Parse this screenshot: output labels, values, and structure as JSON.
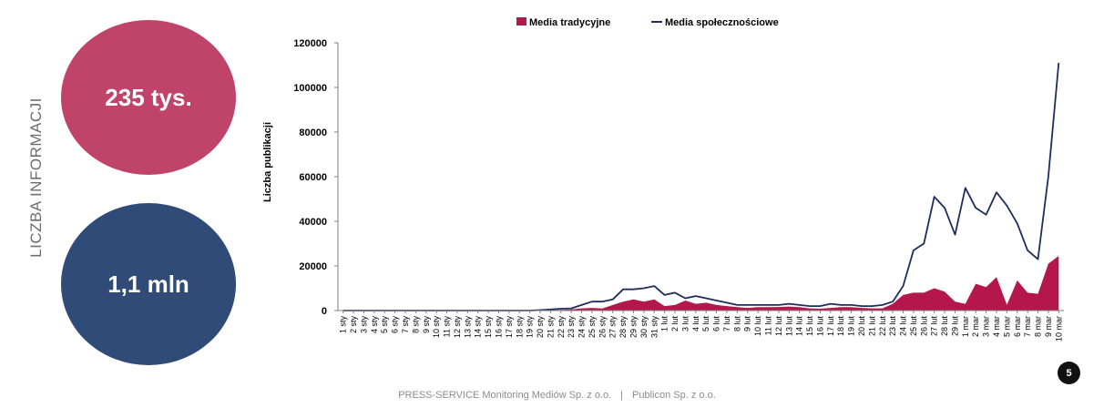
{
  "side_title": "LICZBA INFORMACJI",
  "stats": {
    "traditional": "235 tys.",
    "social": "1,1 mln"
  },
  "footer": {
    "left": "PRESS-SERVICE Monitoring Mediów Sp. z o.o.",
    "separator": "|",
    "right": "Publicon Sp. z o.o."
  },
  "page_number": "5",
  "colors": {
    "traditional": "#b5174c",
    "social": "#1f2d5c",
    "circle_top": "#c0436a",
    "circle_bottom": "#304b78"
  },
  "chart_data": {
    "type": "area+line",
    "title": "",
    "xlabel": "",
    "ylabel": "Liczba publikacji",
    "ylim": [
      0,
      120000
    ],
    "yticks": [
      "0",
      "20000",
      "40000",
      "60000",
      "80000",
      "100000",
      "120000"
    ],
    "legend_position": "top-center",
    "categories": [
      "1 sty",
      "2 sty",
      "3 sty",
      "4 sty",
      "5 sty",
      "6 sty",
      "7 sty",
      "8 sty",
      "9 sty",
      "10 sty",
      "11 sty",
      "12 sty",
      "13 sty",
      "14 sty",
      "15 sty",
      "16 sty",
      "17 sty",
      "18 sty",
      "19 sty",
      "20 sty",
      "21 sty",
      "22 sty",
      "23 sty",
      "24 sty",
      "25 sty",
      "26 sty",
      "27 sty",
      "28 sty",
      "29 sty",
      "30 sty",
      "31 sty",
      "1 lut",
      "2 lut",
      "3 lut",
      "4 lut",
      "5 lut",
      "6 lut",
      "7 lut",
      "8 lut",
      "9 lut",
      "10 lut",
      "11 lut",
      "12 lut",
      "13 lut",
      "14 lut",
      "15 lut",
      "16 lut",
      "17 lut",
      "18 lut",
      "19 lut",
      "20 lut",
      "21 lut",
      "22 lut",
      "23 lut",
      "24 lut",
      "25 lut",
      "26 lut",
      "27 lut",
      "28 lut",
      "29 lut",
      "1 mar",
      "2 mar",
      "3 mar",
      "4 mar",
      "5 mar",
      "6 mar",
      "7 mar",
      "8 mar",
      "9 mar",
      "10 mar"
    ],
    "series": [
      {
        "name": "Media tradycyjne",
        "kind": "area",
        "values": [
          0,
          0,
          0,
          0,
          0,
          0,
          0,
          0,
          0,
          0,
          0,
          0,
          0,
          0,
          0,
          0,
          0,
          0,
          0,
          100,
          200,
          300,
          500,
          1000,
          1200,
          900,
          2500,
          4000,
          5000,
          4000,
          5000,
          2000,
          2500,
          4500,
          3000,
          3500,
          2500,
          2000,
          1500,
          1200,
          1500,
          1500,
          1600,
          1800,
          1500,
          1000,
          800,
          1200,
          1500,
          1500,
          1200,
          1000,
          1000,
          3000,
          7000,
          8000,
          8000,
          10000,
          8500,
          4000,
          3000,
          12000,
          10500,
          15000,
          2500,
          13500,
          8000,
          7500,
          21000,
          24500
        ]
      },
      {
        "name": "Media społecznościowe",
        "kind": "line",
        "values": [
          0,
          0,
          0,
          0,
          0,
          0,
          0,
          0,
          0,
          0,
          0,
          0,
          0,
          0,
          0,
          0,
          0,
          0,
          0,
          200,
          500,
          800,
          1000,
          2500,
          4000,
          4000,
          5000,
          9500,
          9500,
          10000,
          11000,
          7000,
          8000,
          5500,
          6500,
          5500,
          4500,
          3500,
          2500,
          2500,
          2500,
          2500,
          2500,
          3000,
          2500,
          2000,
          2000,
          3000,
          2500,
          2500,
          2000,
          2000,
          2500,
          4000,
          11000,
          27000,
          30000,
          51000,
          46000,
          34000,
          55000,
          46000,
          43000,
          53000,
          47000,
          39000,
          27000,
          23000,
          60000,
          111000
        ]
      }
    ]
  }
}
